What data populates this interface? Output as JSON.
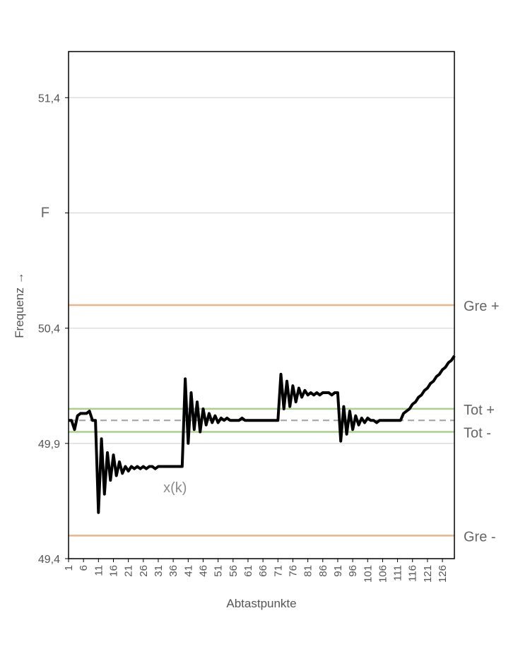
{
  "chart_data": {
    "type": "line",
    "xlabel": "Abtastpunkte",
    "ylabel": "Frequenz →",
    "ylim": [
      49.4,
      51.6
    ],
    "yticks": [
      49.4,
      49.9,
      50.4,
      51.4
    ],
    "ytick_labels": [
      "49,4",
      "49,9",
      "50,4",
      "51,4"
    ],
    "extra_ytick": {
      "value": 50.9,
      "label": "F"
    },
    "xlim": [
      1,
      130
    ],
    "xticks": [
      1,
      6,
      11,
      16,
      21,
      26,
      31,
      36,
      41,
      46,
      51,
      56,
      61,
      66,
      71,
      76,
      81,
      86,
      91,
      96,
      101,
      106,
      111,
      116,
      121,
      126
    ],
    "grid": true,
    "series_label": {
      "text": "x(k)",
      "x": 36,
      "y": 49.71
    },
    "reference_lines": [
      {
        "name": "Gre +",
        "y": 50.5,
        "color": "#e8b48c"
      },
      {
        "name": "Tot +",
        "y": 50.05,
        "color": "#a9cf8f"
      },
      {
        "name": "Tot -",
        "y": 49.95,
        "color": "#a9cf8f"
      },
      {
        "name": "Gre -",
        "y": 49.5,
        "color": "#e8b48c"
      },
      {
        "name": "",
        "y": 50.0,
        "color": "#a6a6a6",
        "dashed": true
      }
    ],
    "series": [
      {
        "color": "#000000",
        "x": [
          1,
          2,
          3,
          4,
          5,
          6,
          7,
          8,
          9,
          10,
          11,
          12,
          13,
          14,
          15,
          16,
          17,
          18,
          19,
          20,
          21,
          22,
          23,
          24,
          25,
          26,
          27,
          28,
          29,
          30,
          31,
          32,
          33,
          34,
          35,
          36,
          37,
          38,
          39,
          40,
          41,
          42,
          43,
          44,
          45,
          46,
          47,
          48,
          49,
          50,
          51,
          52,
          53,
          54,
          55,
          56,
          57,
          58,
          59,
          60,
          61,
          62,
          63,
          64,
          65,
          66,
          67,
          68,
          69,
          70,
          71,
          72,
          73,
          74,
          75,
          76,
          77,
          78,
          79,
          80,
          81,
          82,
          83,
          84,
          85,
          86,
          87,
          88,
          89,
          90,
          91,
          92,
          93,
          94,
          95,
          96,
          97,
          98,
          99,
          100,
          101,
          102,
          103,
          104,
          105,
          106,
          107,
          108,
          109,
          110,
          111,
          112,
          113,
          114,
          115,
          116,
          117,
          118,
          119,
          120,
          121,
          122,
          123,
          124,
          125,
          126,
          127,
          128,
          129,
          130
        ],
        "y": [
          50.0,
          50.0,
          49.96,
          50.02,
          50.03,
          50.03,
          50.03,
          50.04,
          50.0,
          50.0,
          49.6,
          49.92,
          49.68,
          49.86,
          49.74,
          49.85,
          49.76,
          49.82,
          49.77,
          49.8,
          49.78,
          49.8,
          49.79,
          49.8,
          49.79,
          49.8,
          49.79,
          49.8,
          49.8,
          49.79,
          49.8,
          49.8,
          49.8,
          49.8,
          49.8,
          49.8,
          49.8,
          49.8,
          49.8,
          50.18,
          49.9,
          50.12,
          49.96,
          50.08,
          49.95,
          50.05,
          49.98,
          50.03,
          49.99,
          50.02,
          49.99,
          50.01,
          50.0,
          50.01,
          50.0,
          50.0,
          50.0,
          50.0,
          50.01,
          50.0,
          50.0,
          50.0,
          50.0,
          50.0,
          50.0,
          50.0,
          50.0,
          50.0,
          50.0,
          50.0,
          50.0,
          50.2,
          50.05,
          50.17,
          50.06,
          50.15,
          50.08,
          50.14,
          50.1,
          50.13,
          50.11,
          50.12,
          50.11,
          50.12,
          50.11,
          50.12,
          50.12,
          50.12,
          50.11,
          50.12,
          50.12,
          49.91,
          50.06,
          49.94,
          50.04,
          49.96,
          50.02,
          49.98,
          50.01,
          49.99,
          50.01,
          50.0,
          50.0,
          49.99,
          50.0,
          50.0,
          50.0,
          50.0,
          50.0,
          50.0,
          50.0,
          50.0,
          50.03,
          50.04,
          50.05,
          50.07,
          50.08,
          50.1,
          50.11,
          50.13,
          50.14,
          50.16,
          50.17,
          50.19,
          50.2,
          50.22,
          50.23,
          50.25,
          50.26,
          50.28
        ]
      }
    ]
  }
}
